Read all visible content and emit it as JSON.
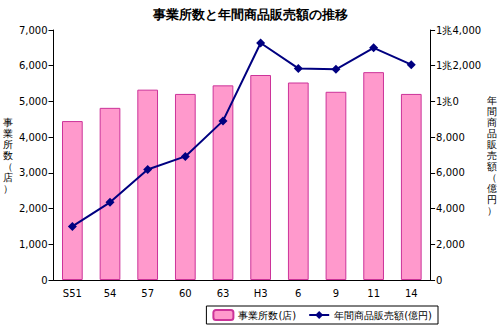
{
  "chart_data": {
    "type": "bar",
    "title": "事業所数と年間商品販売額の推移",
    "ylabel": "事業所数（店）",
    "y2label": "年間商品販売額（億円）",
    "categories": [
      "S51",
      "54",
      "57",
      "60",
      "63",
      "H3",
      "6",
      "9",
      "11",
      "14"
    ],
    "series": [
      {
        "name": "事業所数(店)",
        "type": "bar",
        "color": "#ff99cc",
        "values": [
          4450,
          4820,
          5330,
          5210,
          5450,
          5740,
          5530,
          5270,
          5820,
          5210
        ]
      },
      {
        "name": "年間商品販売額(億円)",
        "type": "line",
        "axis": "y2",
        "color": "#000080",
        "marker": "diamond",
        "values": [
          3000,
          4350,
          6190,
          6920,
          8910,
          13270,
          11850,
          11800,
          13000,
          12060
        ]
      }
    ],
    "ylim": [
      0,
      7000
    ],
    "yticks": [
      0,
      {
        "value": 1000,
        "label": "1,000"
      },
      {
        "value": 2000,
        "label": "2,000"
      },
      {
        "value": 3000,
        "label": "3,000"
      },
      {
        "value": 4000,
        "label": "4,000"
      },
      {
        "value": 5000,
        "label": "5,000"
      },
      {
        "value": 6000,
        "label": "6,000"
      },
      {
        "value": 7000,
        "label": "7,000"
      }
    ],
    "y2lim": [
      0,
      14000
    ],
    "y2ticks": [
      0,
      {
        "value": 2000,
        "label": "2,000"
      },
      {
        "value": 4000,
        "label": "4,000"
      },
      {
        "value": 6000,
        "label": "6,000"
      },
      {
        "value": 8000,
        "label": "8,000"
      },
      {
        "value": 10000,
        "label": "1兆0"
      },
      {
        "value": 12000,
        "label": "1兆2,000"
      },
      {
        "value": 14000,
        "label": "1兆4,000"
      }
    ],
    "grid": false,
    "legend": "lower right"
  }
}
